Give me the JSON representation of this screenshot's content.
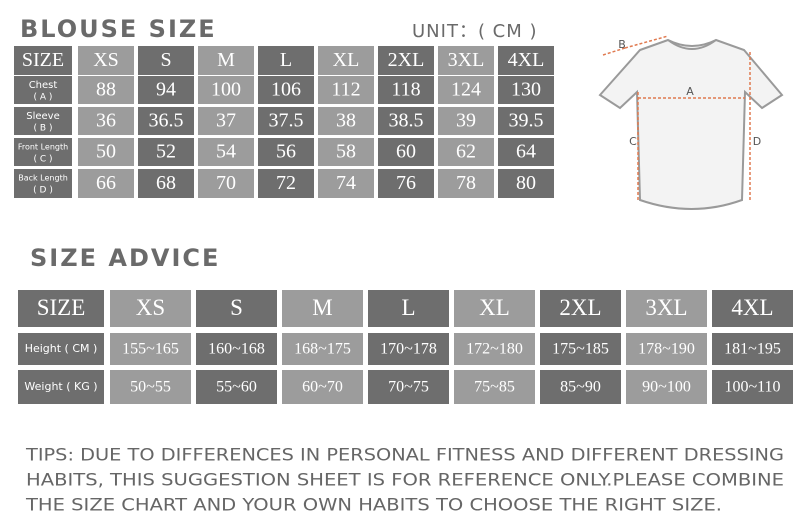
{
  "blouse_size": {
    "title": "BLOUSE SIZE",
    "unit": "UNIT：( CM )",
    "header": [
      "SIZE",
      "XS",
      "S",
      "M",
      "L",
      "XL",
      "2XL",
      "3XL",
      "4XL"
    ],
    "rows": [
      {
        "label": "Chest",
        "code": "( A )",
        "values": [
          88,
          94,
          100,
          106,
          112,
          118,
          124,
          130
        ]
      },
      {
        "label": "Sleeve",
        "code": "( B )",
        "values": [
          36,
          36.5,
          37,
          37.5,
          38,
          38.5,
          39,
          39.5
        ]
      },
      {
        "label": "Front Length",
        "code": "( C )",
        "values": [
          50,
          52,
          54,
          56,
          58,
          60,
          62,
          64
        ]
      },
      {
        "label": "Back Length",
        "code": "( D )",
        "values": [
          66,
          68,
          70,
          72,
          74,
          76,
          78,
          80
        ]
      }
    ]
  },
  "diagram": {
    "labels": [
      "A",
      "B",
      "C",
      "D"
    ]
  },
  "size_advice": {
    "title": "SIZE ADVICE",
    "header": [
      "SIZE",
      "XS",
      "S",
      "M",
      "L",
      "XL",
      "2XL",
      "3XL",
      "4XL"
    ],
    "rows": [
      {
        "label": "Height ( CM )",
        "values": [
          "155~165",
          "160~168",
          "168~175",
          "170~178",
          "172~180",
          "175~185",
          "178~190",
          "181~195"
        ]
      },
      {
        "label": "Weight ( KG )",
        "values": [
          "50~55",
          "55~60",
          "60~70",
          "70~75",
          "75~85",
          "85~90",
          "90~100",
          "100~110"
        ]
      }
    ]
  },
  "tips": [
    "TIPS: DUE TO DIFFERENCES IN PERSONAL FITNESS AND DIFFERENT DRESSING",
    "HABITS, THIS SUGGESTION SHEET IS FOR REFERENCE ONLY.PLEASE COMBINE",
    "THE SIZE CHART AND YOUR OWN HABITS TO CHOOSE THE RIGHT SIZE."
  ]
}
